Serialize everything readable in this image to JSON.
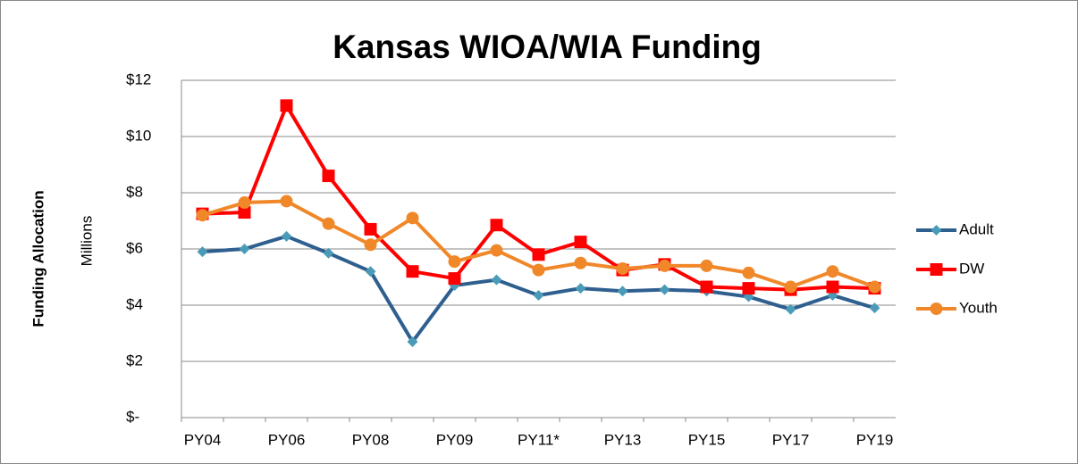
{
  "chart_data": {
    "type": "line",
    "title": "Kansas WIOA/WIA Funding",
    "ylabel": "Funding Allocation",
    "yunit_label": "Millions",
    "categories": [
      "PY04",
      null,
      "PY06",
      null,
      "PY08",
      null,
      "PY09",
      null,
      "PY11*",
      null,
      "PY13",
      null,
      "PY15",
      null,
      "PY17",
      null,
      "PY19"
    ],
    "series": [
      {
        "name": "Adult",
        "color": "#2e5f8f",
        "marker_color": "#4a9bb8",
        "marker": "diamond",
        "values": [
          5.9,
          6.0,
          6.45,
          5.85,
          5.2,
          2.7,
          4.7,
          4.9,
          4.35,
          4.6,
          4.5,
          4.55,
          4.5,
          4.3,
          3.85,
          4.35,
          3.9
        ]
      },
      {
        "name": "DW",
        "color": "#ff0000",
        "marker_color": "#ff0000",
        "marker": "square",
        "values": [
          7.25,
          7.3,
          11.1,
          8.6,
          6.7,
          5.2,
          4.95,
          6.85,
          5.8,
          6.25,
          5.25,
          5.45,
          4.65,
          4.6,
          4.55,
          4.65,
          4.6
        ]
      },
      {
        "name": "Youth",
        "color": "#f0882a",
        "marker_color": "#f0882a",
        "marker": "circle",
        "values": [
          7.2,
          7.65,
          7.7,
          6.9,
          6.15,
          7.1,
          5.55,
          5.95,
          5.25,
          5.5,
          5.3,
          5.4,
          5.4,
          5.15,
          4.65,
          5.2,
          4.65
        ]
      }
    ],
    "ylim": [
      0,
      12
    ],
    "yticks": [
      {
        "value": 0,
        "label": "$-"
      },
      {
        "value": 2,
        "label": "$2"
      },
      {
        "value": 4,
        "label": "$4"
      },
      {
        "value": 6,
        "label": "$6"
      },
      {
        "value": 8,
        "label": "$8"
      },
      {
        "value": 10,
        "label": "$10"
      },
      {
        "value": 12,
        "label": "$12"
      }
    ],
    "grid": true,
    "legend": "right"
  }
}
